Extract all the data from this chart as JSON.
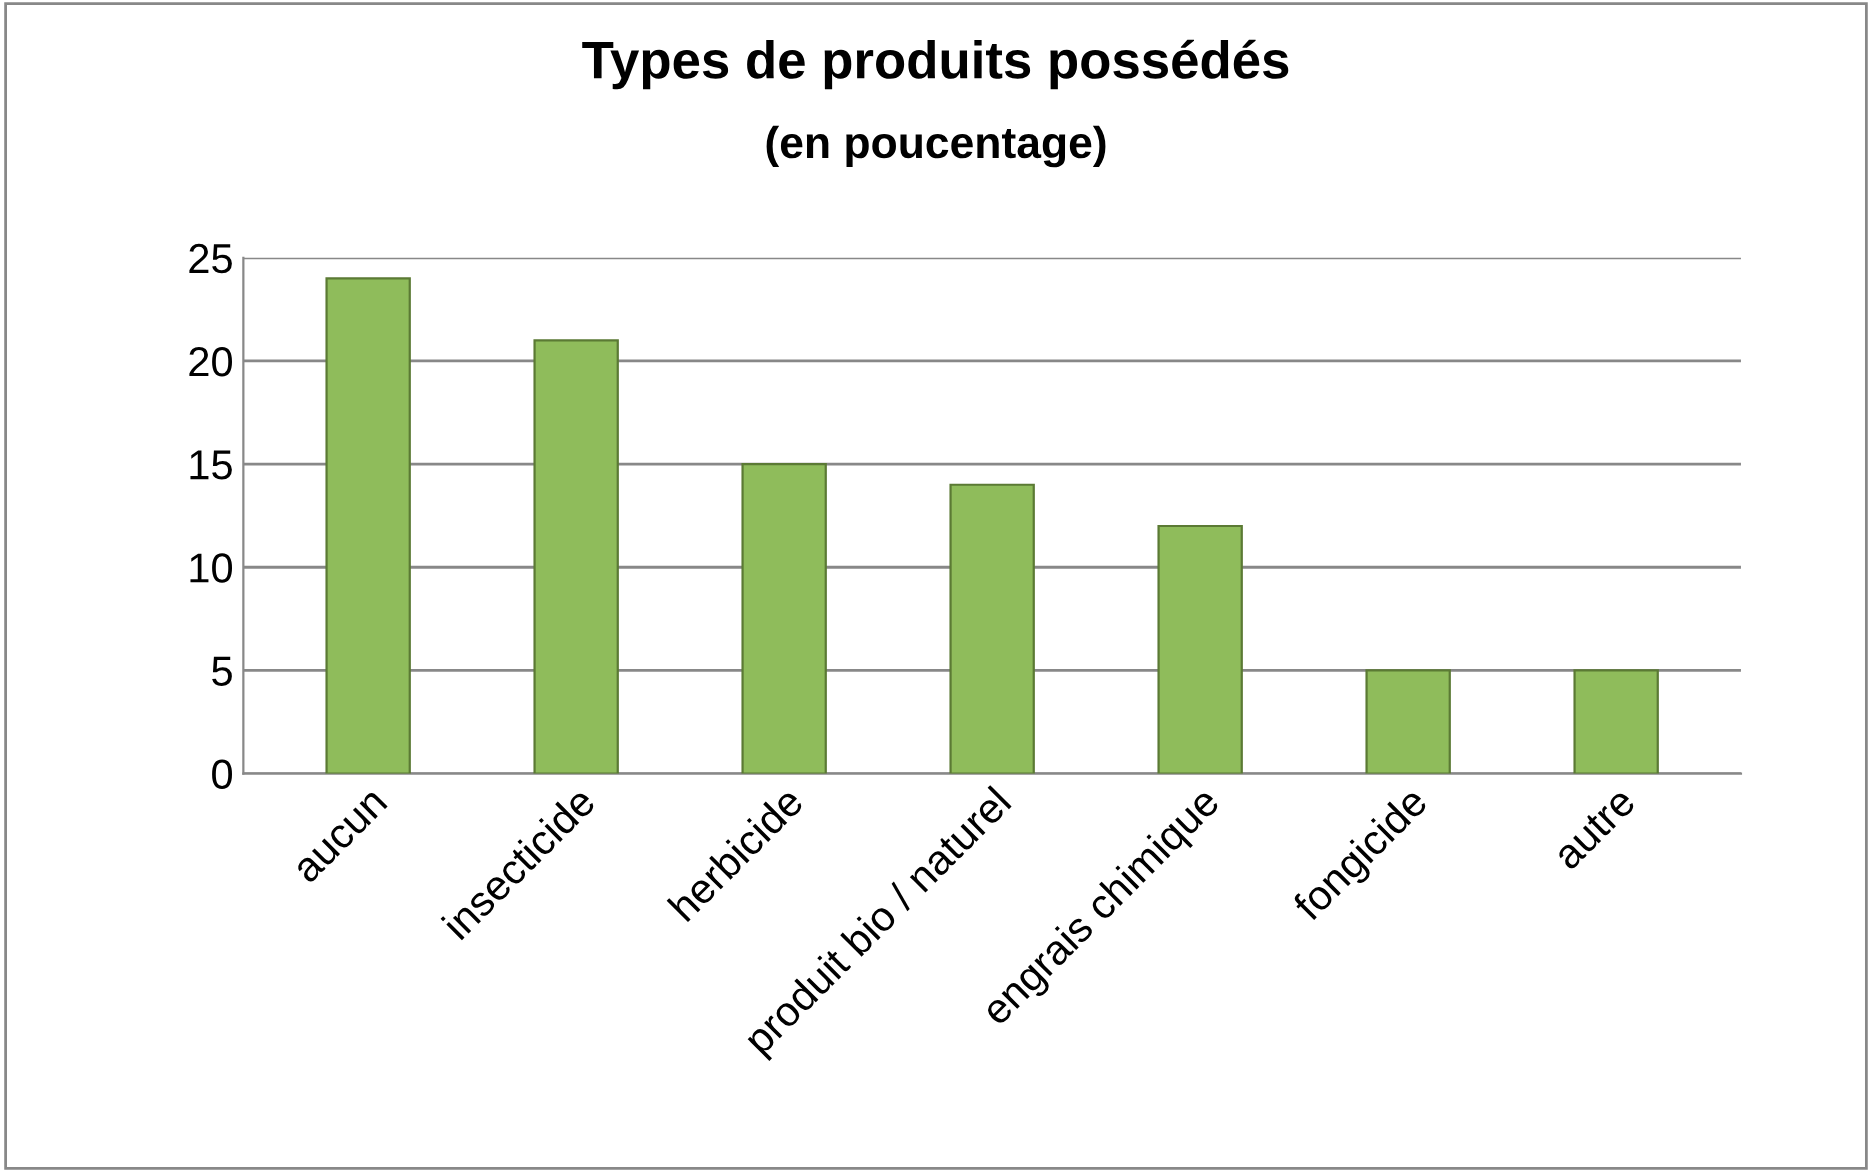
{
  "chart_data": {
    "type": "bar",
    "title": "Types de produits possédés",
    "subtitle": "(en poucentage)",
    "categories": [
      "aucun",
      "insecticide",
      "herbicide",
      "produit bio / naturel",
      "engrais chimique",
      "fongicide",
      "autre"
    ],
    "values": [
      24,
      21,
      15,
      14,
      12,
      5,
      5
    ],
    "color": "#8fbc5b",
    "ylim": [
      0,
      25
    ],
    "yticks": [
      0,
      5,
      10,
      15,
      20,
      25
    ],
    "grid": "y",
    "legend": false
  }
}
